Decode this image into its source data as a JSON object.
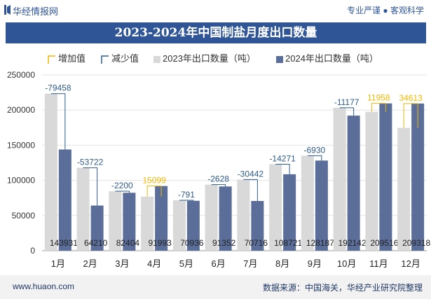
{
  "header": {
    "brand": "华经情报网",
    "slogan": "专业严谨 ● 客观科学"
  },
  "footer": {
    "left": "www.huaon.com",
    "right": "数据来源：中国海关，华经产业研究院整理"
  },
  "colors": {
    "bar2023": "#d9d9d9",
    "bar2024": "#5b6e99",
    "increase": "#f2b600",
    "decrease": "#2e5b8c",
    "title_bg": "#2f5597"
  },
  "chart_data": {
    "type": "bar",
    "title": "2023-2024年中国制盐月度出口数量",
    "categories": [
      "1月",
      "2月",
      "3月",
      "4月",
      "5月",
      "6月",
      "7月",
      "8月",
      "9月",
      "10月",
      "11月",
      "12月"
    ],
    "ylim": [
      0,
      250000
    ],
    "yticks": [
      0,
      50000,
      100000,
      150000,
      200000,
      250000
    ],
    "legend_position": "top",
    "grid": true,
    "series": [
      {
        "name": "2023年出口数量（吨）",
        "values": [
          223389,
          117932,
          84604,
          76894,
          71727,
          93980,
          101158,
          122992,
          135117,
          203319,
          197558,
          174705
        ]
      },
      {
        "name": "2024年出口数量（吨）",
        "values": [
          143931,
          64210,
          82404,
          91993,
          70936,
          91352,
          70716,
          108721,
          128187,
          192142,
          209516,
          209318
        ]
      }
    ],
    "change_legend": {
      "increase": "增加值",
      "decrease": "减少值"
    },
    "changes": [
      "-79458",
      "-53722",
      "-2200",
      "15099",
      "-791",
      "-2628",
      "-30442",
      "-14271",
      "-6930",
      "-11177",
      "11958",
      "34613"
    ],
    "bar_labels_2024": [
      "143931",
      "64210",
      "82404",
      "91993",
      "70936",
      "91352",
      "70716",
      "108721",
      "128187",
      "192142",
      "209516",
      "209318"
    ]
  }
}
